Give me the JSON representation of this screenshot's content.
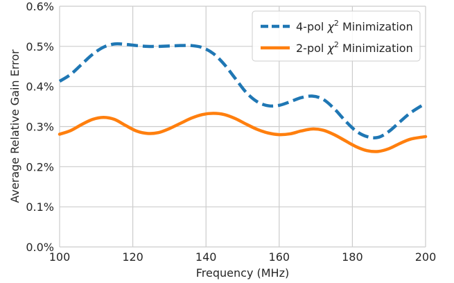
{
  "chart_data": {
    "type": "line",
    "xlabel": "Frequency (MHz)",
    "ylabel": "Average Relative Gain Error",
    "xlim": [
      100,
      200
    ],
    "ylim": [
      0.0,
      0.6
    ],
    "x_ticks": [
      100,
      120,
      140,
      160,
      180,
      200
    ],
    "x_tick_labels": [
      "100",
      "120",
      "140",
      "160",
      "180",
      "200"
    ],
    "y_ticks": [
      0.0,
      0.1,
      0.2,
      0.3,
      0.4,
      0.5,
      0.6
    ],
    "y_tick_labels": [
      "0.0%",
      "0.1%",
      "0.2%",
      "0.3%",
      "0.4%",
      "0.5%",
      "0.6%"
    ],
    "grid": true,
    "legend_position": "top-right",
    "legend_entries": [
      {
        "prefix": "4-pol ",
        "chi": "χ",
        "exp": "2",
        "suffix": " Minimization"
      },
      {
        "prefix": "2-pol ",
        "chi": "χ",
        "exp": "2",
        "suffix": " Minimization"
      }
    ],
    "series": [
      {
        "name": "4-pol χ² Minimization",
        "color": "#1f77b4",
        "style": "dashed",
        "x": [
          100,
          103,
          106,
          109,
          112,
          115,
          118,
          121,
          124,
          127,
          130,
          133,
          136,
          139,
          142,
          145,
          148,
          151,
          154,
          157,
          160,
          163,
          166,
          169,
          172,
          175,
          178,
          181,
          184,
          187,
          190,
          193,
          196,
          200
        ],
        "y": [
          0.413,
          0.43,
          0.455,
          0.48,
          0.498,
          0.506,
          0.505,
          0.502,
          0.5,
          0.5,
          0.501,
          0.502,
          0.502,
          0.497,
          0.482,
          0.455,
          0.42,
          0.385,
          0.362,
          0.352,
          0.353,
          0.362,
          0.372,
          0.376,
          0.368,
          0.345,
          0.315,
          0.289,
          0.275,
          0.273,
          0.288,
          0.312,
          0.335,
          0.358
        ]
      },
      {
        "name": "2-pol χ² Minimization",
        "color": "#ff7f0e",
        "style": "solid",
        "x": [
          100,
          103,
          106,
          109,
          112,
          115,
          118,
          121,
          124,
          127,
          130,
          133,
          136,
          139,
          142,
          145,
          148,
          151,
          154,
          157,
          160,
          163,
          166,
          169,
          172,
          175,
          178,
          181,
          184,
          187,
          190,
          193,
          196,
          200
        ],
        "y": [
          0.281,
          0.29,
          0.305,
          0.318,
          0.323,
          0.318,
          0.303,
          0.289,
          0.283,
          0.285,
          0.295,
          0.308,
          0.321,
          0.33,
          0.333,
          0.33,
          0.32,
          0.306,
          0.293,
          0.284,
          0.28,
          0.282,
          0.289,
          0.294,
          0.291,
          0.28,
          0.265,
          0.25,
          0.24,
          0.238,
          0.245,
          0.258,
          0.269,
          0.275
        ]
      }
    ]
  }
}
